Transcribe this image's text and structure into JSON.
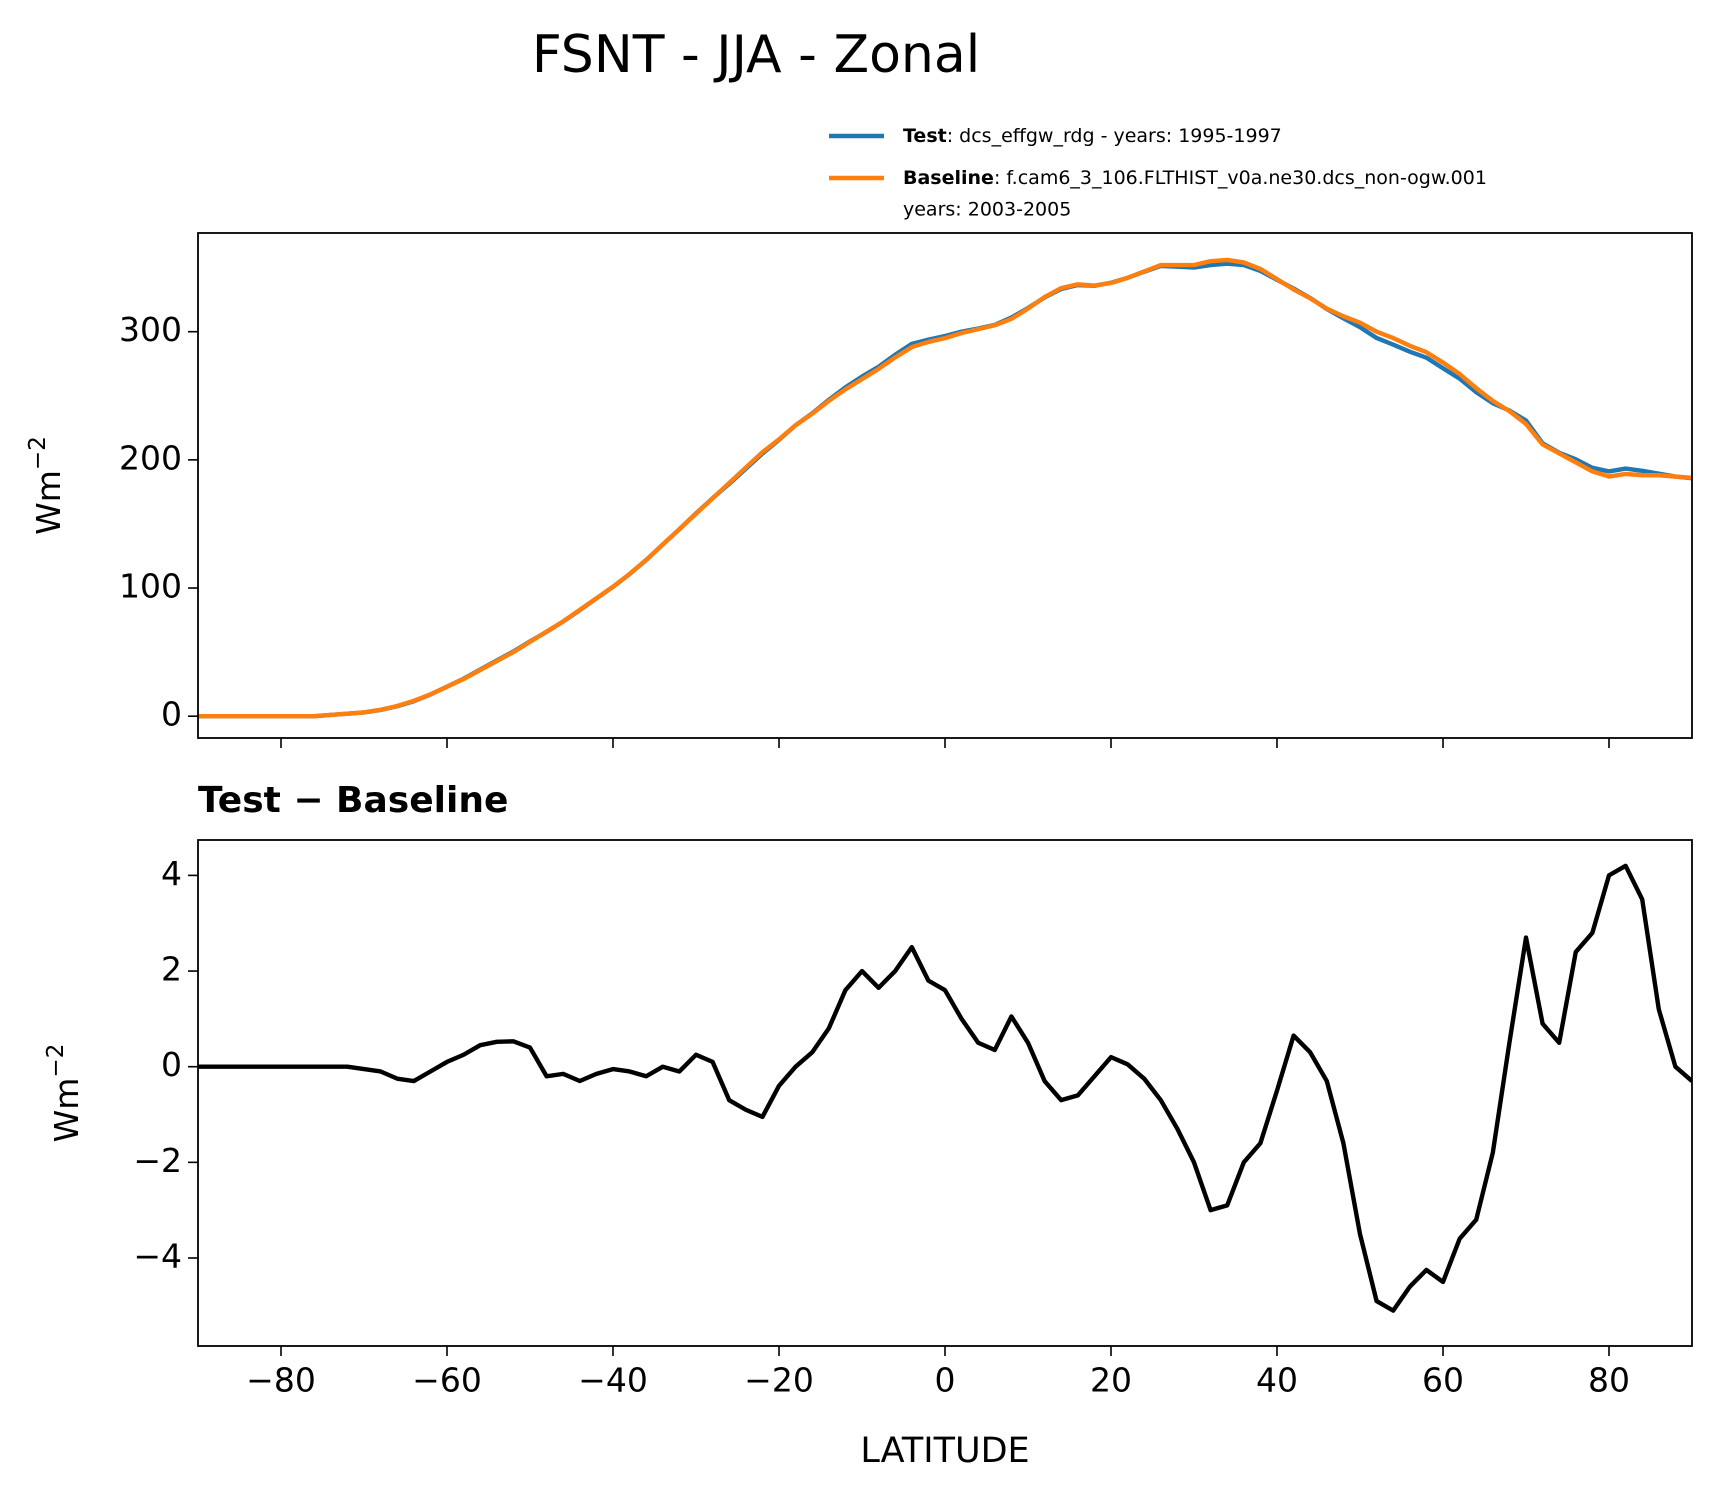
{
  "title": "FSNT - JJA - Zonal",
  "chart_data": [
    {
      "type": "line",
      "ylabel": "Wm",
      "ylabel_exponent": "−2",
      "x": [
        -90,
        -88,
        -86,
        -84,
        -82,
        -80,
        -78,
        -76,
        -74,
        -72,
        -70,
        -68,
        -66,
        -64,
        -62,
        -60,
        -58,
        -56,
        -54,
        -52,
        -50,
        -48,
        -46,
        -44,
        -42,
        -40,
        -38,
        -36,
        -34,
        -32,
        -30,
        -28,
        -26,
        -24,
        -22,
        -20,
        -18,
        -16,
        -14,
        -12,
        -10,
        -8,
        -6,
        -4,
        -2,
        0,
        2,
        4,
        6,
        8,
        10,
        12,
        14,
        16,
        18,
        20,
        22,
        24,
        26,
        28,
        30,
        32,
        34,
        36,
        38,
        40,
        42,
        44,
        46,
        48,
        50,
        52,
        54,
        56,
        58,
        60,
        62,
        64,
        66,
        68,
        70,
        72,
        74,
        76,
        78,
        80,
        82,
        84,
        86,
        88,
        90
      ],
      "series": [
        {
          "name": "Test",
          "description": [
            ": dcs_effgw_rdg - years: 1995-1997"
          ],
          "color": "#1f77b4",
          "values": [
            0,
            0,
            0,
            0,
            0,
            0,
            0,
            0,
            1,
            2,
            2.95,
            4.9,
            7.75,
            11.7,
            16.9,
            23.1,
            29.25,
            36.45,
            43.52,
            50.53,
            58.4,
            65.8,
            73.85,
            82.7,
            91.85,
            100.95,
            110.9,
            121.8,
            134,
            145.9,
            158.25,
            170.1,
            181.3,
            193.1,
            204.95,
            215.6,
            227,
            236.3,
            246.8,
            256.6,
            265,
            272.65,
            282,
            290.5,
            293.8,
            296.6,
            300,
            302.5,
            305.35,
            311.05,
            318.5,
            326.7,
            333.3,
            336.4,
            335.8,
            338.2,
            342.05,
            346.75,
            351.3,
            350.7,
            350,
            352,
            353.1,
            352,
            347.4,
            340.5,
            333.65,
            326.3,
            317.7,
            310.4,
            303.5,
            295.1,
            289.9,
            284.4,
            279.75,
            271.5,
            263.4,
            252.8,
            244.2,
            238.5,
            230.7,
            212.9,
            205.5,
            200.4,
            193.8,
            191,
            193.2,
            191.5,
            189.2,
            187,
            185.7
          ]
        },
        {
          "name": "Baseline",
          "description": [
            ": f.cam6_3_106.FLTHIST_v0a.ne30.dcs_non-ogw.001",
            "years: 2003-2005"
          ],
          "color": "#ff7f0e",
          "values": [
            0,
            0,
            0,
            0,
            0,
            0,
            0,
            0,
            1,
            2,
            3,
            5,
            8,
            12,
            17,
            23,
            29,
            36,
            43,
            50,
            58,
            66,
            74,
            83,
            92,
            101,
            111,
            122,
            134,
            146,
            158,
            170,
            182,
            194,
            206,
            216,
            227,
            236,
            246,
            255,
            263,
            271,
            280,
            288,
            292,
            295,
            299,
            302,
            305,
            310,
            318,
            327,
            334,
            337,
            336,
            338,
            342,
            347,
            352,
            352,
            352,
            355,
            356,
            354,
            349,
            341,
            333,
            326,
            318,
            312,
            307,
            300,
            295,
            289,
            284,
            276,
            267,
            256,
            246,
            238,
            228,
            212,
            205,
            198,
            191,
            187,
            189,
            188,
            188,
            187,
            186
          ]
        }
      ],
      "xlim": [
        -90,
        90
      ],
      "ylim": [
        -17,
        377
      ],
      "xticks": [
        -80,
        -60,
        -40,
        -20,
        0,
        20,
        40,
        60,
        80
      ],
      "xtick_labels": false,
      "yticks": [
        0,
        100,
        200,
        300
      ]
    },
    {
      "type": "line",
      "title": "Test − Baseline",
      "xlabel": "LATITUDE",
      "ylabel": "Wm",
      "ylabel_exponent": "−2",
      "x": [
        -90,
        -88,
        -86,
        -84,
        -82,
        -80,
        -78,
        -76,
        -74,
        -72,
        -70,
        -68,
        -66,
        -64,
        -62,
        -60,
        -58,
        -56,
        -54,
        -52,
        -50,
        -48,
        -46,
        -44,
        -42,
        -40,
        -38,
        -36,
        -34,
        -32,
        -30,
        -28,
        -26,
        -24,
        -22,
        -20,
        -18,
        -16,
        -14,
        -12,
        -10,
        -8,
        -6,
        -4,
        -2,
        0,
        2,
        4,
        6,
        8,
        10,
        12,
        14,
        16,
        18,
        20,
        22,
        24,
        26,
        28,
        30,
        32,
        34,
        36,
        38,
        40,
        42,
        44,
        46,
        48,
        50,
        52,
        54,
        56,
        58,
        60,
        62,
        64,
        66,
        68,
        70,
        72,
        74,
        76,
        78,
        80,
        82,
        84,
        86,
        88,
        90
      ],
      "series": [
        {
          "color": "#000000",
          "values": [
            0,
            0,
            0,
            0,
            0,
            0,
            0,
            0,
            0,
            0,
            -0.05,
            -0.1,
            -0.25,
            -0.3,
            -0.1,
            0.1,
            0.25,
            0.45,
            0.52,
            0.53,
            0.4,
            -0.2,
            -0.15,
            -0.3,
            -0.15,
            -0.05,
            -0.1,
            -0.2,
            0,
            -0.1,
            0.25,
            0.1,
            -0.7,
            -0.9,
            -1.05,
            -0.4,
            0,
            0.3,
            0.8,
            1.6,
            2,
            1.65,
            2,
            2.5,
            1.8,
            1.6,
            1,
            0.5,
            0.35,
            1.05,
            0.5,
            -0.3,
            -0.7,
            -0.6,
            -0.2,
            0.2,
            0.05,
            -0.25,
            -0.7,
            -1.3,
            -2,
            -3,
            -2.9,
            -2,
            -1.6,
            -0.5,
            0.65,
            0.3,
            -0.3,
            -1.6,
            -3.5,
            -4.9,
            -5.1,
            -4.6,
            -4.25,
            -4.5,
            -3.6,
            -3.2,
            -1.8,
            0.5,
            2.7,
            0.9,
            0.5,
            2.4,
            2.8,
            4,
            4.2,
            3.5,
            1.2,
            0,
            -0.3
          ]
        }
      ],
      "xlim": [
        -90,
        90
      ],
      "ylim": [
        -5.84,
        4.74
      ],
      "xticks": [
        {
          "value": -80,
          "label": "−80"
        },
        {
          "value": -60,
          "label": "−60"
        },
        {
          "value": -40,
          "label": "−40"
        },
        {
          "value": -20,
          "label": "−20"
        },
        0,
        20,
        40,
        60,
        80
      ],
      "yticks": [
        {
          "value": -4,
          "label": "−4"
        },
        {
          "value": -2,
          "label": "−2"
        },
        0,
        2,
        4
      ]
    }
  ]
}
